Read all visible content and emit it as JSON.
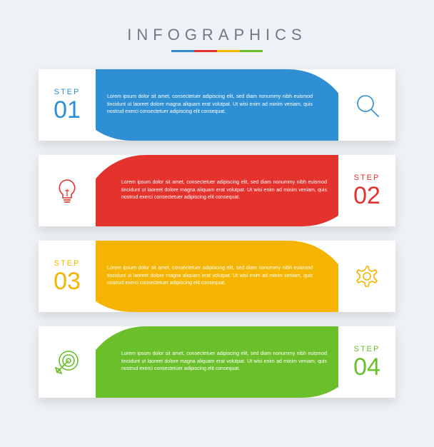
{
  "header": {
    "title": "INFOGRAPHICS",
    "underline_colors": [
      "#2f8fd4",
      "#e4322c",
      "#f4b400",
      "#6abf2a"
    ]
  },
  "background_color": "#eef1f5",
  "card_background": "#ffffff",
  "step_word": "STEP",
  "lorem": "Lorem ipsum dolor sit amet, consectetuer adipiscing elit, sed diam nonummy nibh euismod tincidunt ut laoreet dolore magna aliquam erat volutpat. Ut wisi enim ad minim veniam, quis nostrud exerci consectetuer adipiscing elit consequat.",
  "steps": [
    {
      "number": "01",
      "color": "#2f8fd4",
      "label_side": "left",
      "icon": "magnifier",
      "type": "infographic-step"
    },
    {
      "number": "02",
      "color": "#e4322c",
      "label_side": "right",
      "icon": "bulb",
      "type": "infographic-step"
    },
    {
      "number": "03",
      "color": "#f4b400",
      "label_side": "left",
      "icon": "gear",
      "type": "infographic-step"
    },
    {
      "number": "04",
      "color": "#6abf2a",
      "label_side": "right",
      "icon": "target",
      "type": "infographic-step"
    }
  ],
  "styling": {
    "title_fontsize": 22,
    "title_letterspacing": 7,
    "title_color": "#707a86",
    "step_card_height": 100,
    "step_gap": 20,
    "step_word_fontsize": 11,
    "step_num_fontsize": 34,
    "desc_fontsize": 7,
    "desc_color": "#ffffff",
    "icon_size": 40,
    "icon_stroke_width": 1.6,
    "shadow": "0 6px 14px rgba(0,0,0,0.12)"
  }
}
